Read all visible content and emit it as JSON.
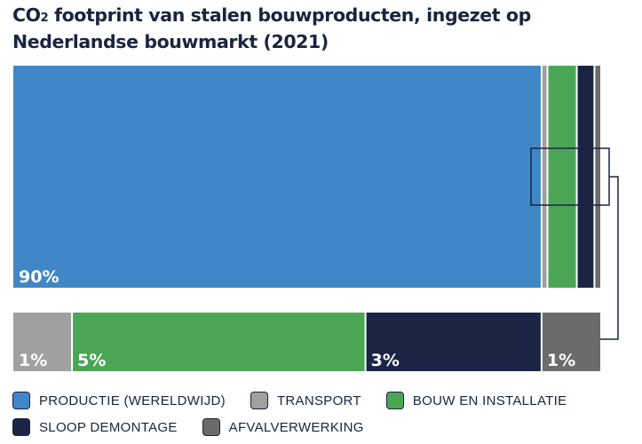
{
  "title": {
    "pre": "CO",
    "sub": "2",
    "post": " footprint van stalen bouwproducten, ingezet op Nederlandse bouwmarkt (2021)"
  },
  "chart_data": {
    "type": "bar",
    "stacked": true,
    "orientation": "horizontal",
    "total": 100,
    "series": [
      {
        "name": "PRODUCTIE (WERELDWIJD)",
        "value": 90,
        "label": "90%",
        "color": "#3f87c6"
      },
      {
        "name": "TRANSPORT",
        "value": 1,
        "label": "1%",
        "color": "#a0a0a0"
      },
      {
        "name": "BOUW EN INSTALLATIE",
        "value": 5,
        "label": "5%",
        "color": "#4aa655"
      },
      {
        "name": "SLOOP DEMONTAGE",
        "value": 3,
        "label": "3%",
        "color": "#1c2445"
      },
      {
        "name": "AFVALVERWERKING",
        "value": 1,
        "label": "1%",
        "color": "#6b6b6b"
      }
    ],
    "zoom_series": [
      1,
      2,
      3,
      4
    ],
    "legend_position": "bottom"
  },
  "legend": {
    "rows": [
      [
        0,
        1,
        2
      ],
      [
        3,
        4
      ]
    ]
  }
}
